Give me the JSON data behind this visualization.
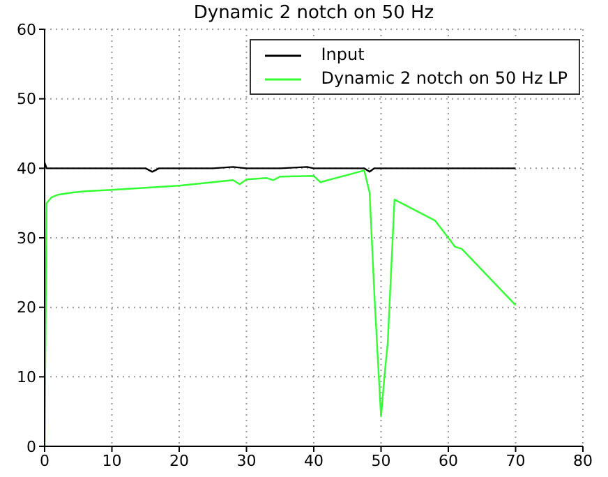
{
  "chart_data": {
    "type": "line",
    "title": "Dynamic 2 notch on 50 Hz",
    "xlim": [
      0,
      80
    ],
    "xticks": [
      0,
      10,
      20,
      30,
      40,
      50,
      60,
      70,
      80
    ],
    "ylim": [
      0,
      60
    ],
    "yticks": [
      0,
      10,
      20,
      30,
      40,
      50,
      60
    ],
    "grid": true,
    "legend": "top right",
    "line_style": "solid",
    "marker": "none",
    "series": [
      {
        "name": "Input",
        "color": "#000000",
        "x": [
          0,
          0.3,
          5,
          10,
          15,
          16,
          17,
          20,
          25,
          28,
          30,
          35,
          39,
          40,
          45,
          47.5,
          48.3,
          49,
          50,
          55,
          60,
          65,
          70
        ],
        "values": [
          40.8,
          40,
          40,
          40,
          40,
          39.5,
          40,
          40,
          40,
          40.2,
          40,
          40,
          40.2,
          40,
          40,
          40,
          39.5,
          40,
          40,
          40,
          40,
          40,
          40
        ]
      },
      {
        "name": "Dynamic 2 notch on 50 Hz LP",
        "color": "#33ff33",
        "x": [
          0,
          0.3,
          1,
          2,
          4,
          6,
          10,
          15,
          20,
          25,
          28,
          29,
          30,
          33,
          34,
          35,
          40,
          41,
          47.5,
          48.3,
          49,
          49.5,
          50,
          50.5,
          51,
          52,
          55,
          58,
          60,
          61,
          62,
          70
        ],
        "values": [
          0,
          35,
          35.8,
          36.2,
          36.5,
          36.7,
          36.9,
          37.2,
          37.5,
          38,
          38.3,
          37.7,
          38.4,
          38.6,
          38.3,
          38.8,
          38.9,
          38,
          39.7,
          36.5,
          22,
          13,
          4.3,
          10,
          15,
          35.5,
          34,
          32.5,
          30,
          28.7,
          28.4,
          20.3
        ]
      }
    ]
  }
}
